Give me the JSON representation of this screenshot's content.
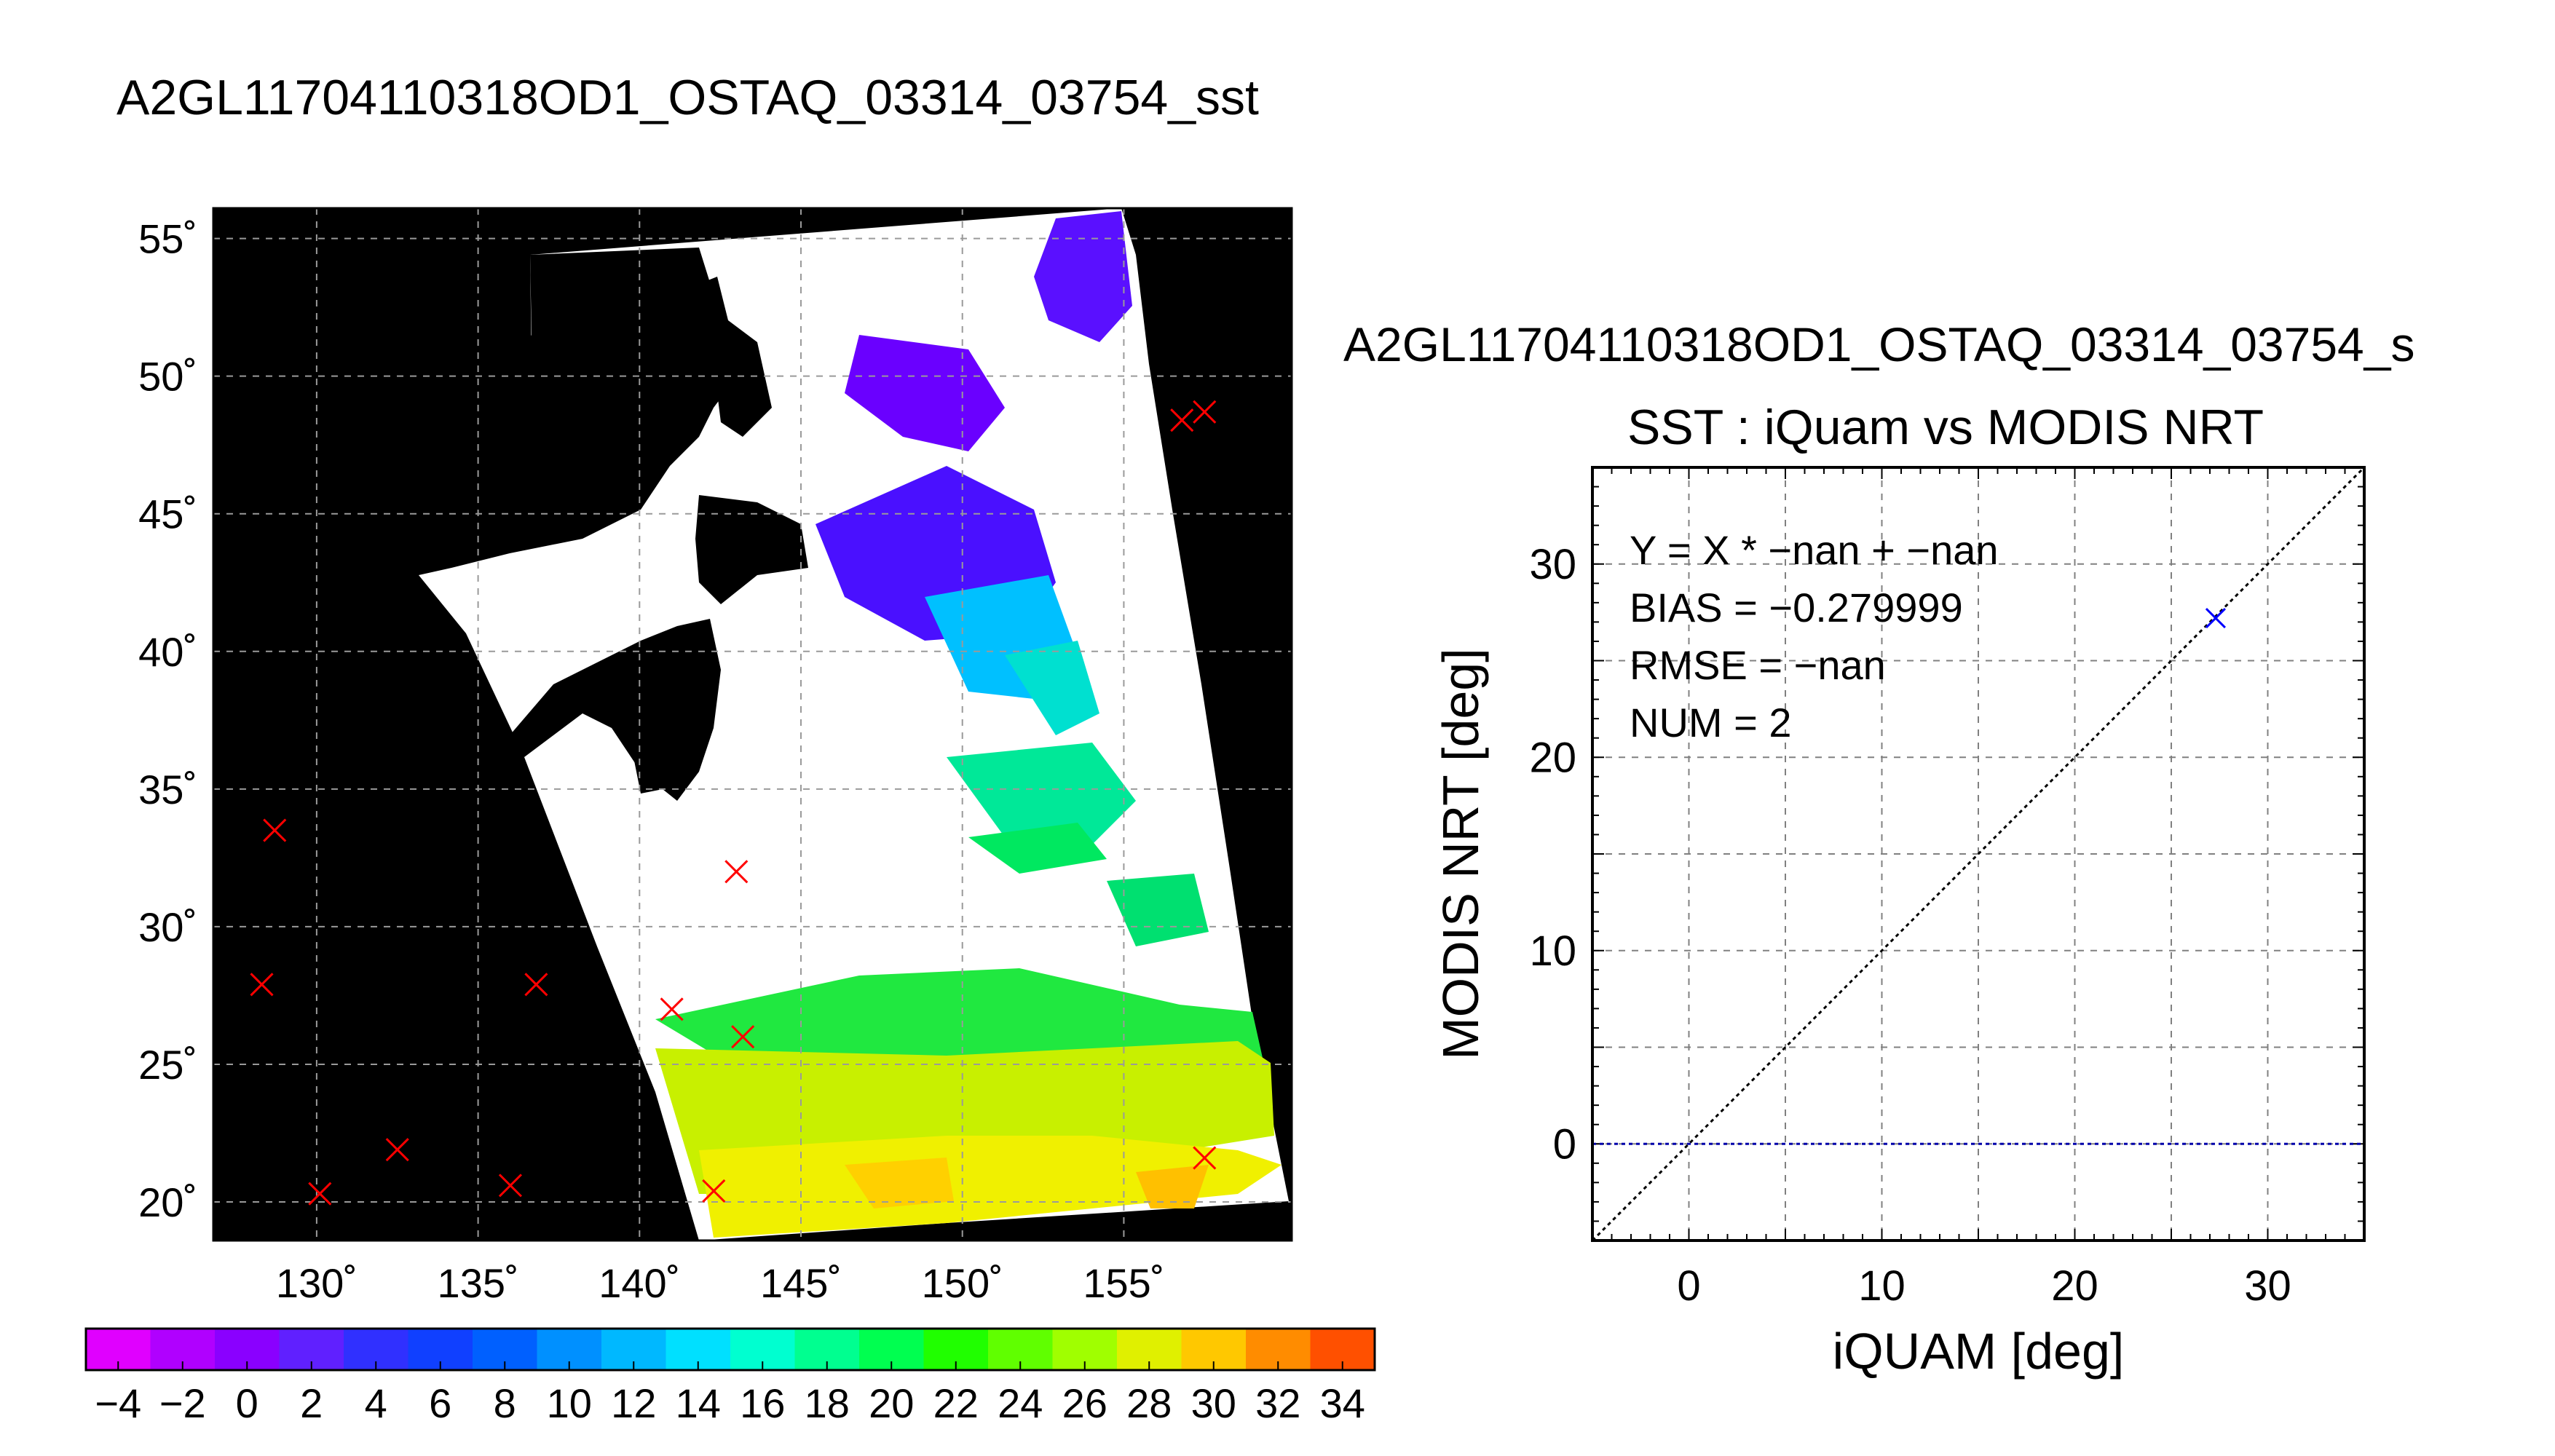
{
  "main_title": "A2GL11704110318OD1_OSTAQ_03314_03754_sst",
  "scatter_file_title": "A2GL11704110318OD1_OSTAQ_03314_03754_s",
  "scatter_subtitle": "SST : iQuam vs MODIS NRT",
  "stats": {
    "fit": "Y = X * −nan + −nan",
    "bias": "BIAS = −0.279999",
    "rmse": "RMSE = −nan",
    "num": "NUM = 2"
  },
  "colors": {
    "land": "#000000",
    "cloud": "#ffffff",
    "marker": "#ff0000",
    "scatter_point": "#0000ff",
    "zero_line": "#0000aa",
    "grid": "#808080"
  },
  "chart_data": [
    {
      "type": "heatmap",
      "title": "A2GL11704110318OD1_OSTAQ_03314_03754_sst",
      "xlabel": "",
      "ylabel": "",
      "x_ticks": [
        "130˚",
        "135˚",
        "140˚",
        "145˚",
        "150˚",
        "155˚"
      ],
      "x_tick_values": [
        130,
        135,
        140,
        145,
        150,
        155
      ],
      "y_ticks": [
        "20˚",
        "25˚",
        "30˚",
        "35˚",
        "40˚",
        "45˚",
        "50˚",
        "55˚"
      ],
      "y_tick_values": [
        20,
        25,
        30,
        35,
        40,
        45,
        50,
        55
      ],
      "xlim": [
        126.8,
        160.2
      ],
      "ylim": [
        18.6,
        56.1
      ],
      "grid": true,
      "colorbar": {
        "min": -5,
        "max": 35,
        "step": 2,
        "tick_labels": [
          "−4",
          "−2",
          "0",
          "2",
          "4",
          "6",
          "8",
          "10",
          "12",
          "14",
          "16",
          "18",
          "20",
          "22",
          "24",
          "26",
          "28",
          "30",
          "32",
          "34"
        ],
        "tick_values": [
          -4,
          -2,
          0,
          2,
          4,
          6,
          8,
          10,
          12,
          14,
          16,
          18,
          20,
          22,
          24,
          26,
          28,
          30,
          32,
          34
        ]
      },
      "matchup_markers": [
        {
          "lon": 128.7,
          "lat": 33.5
        },
        {
          "lon": 128.3,
          "lat": 27.9
        },
        {
          "lon": 130.1,
          "lat": 20.3
        },
        {
          "lon": 132.5,
          "lat": 21.9
        },
        {
          "lon": 136.0,
          "lat": 20.6
        },
        {
          "lon": 136.8,
          "lat": 27.9
        },
        {
          "lon": 141.0,
          "lat": 27.0
        },
        {
          "lon": 143.0,
          "lat": 32.0
        },
        {
          "lon": 143.2,
          "lat": 26.0
        },
        {
          "lon": 142.3,
          "lat": 20.4
        },
        {
          "lon": 156.8,
          "lat": 48.4
        },
        {
          "lon": 157.5,
          "lat": 48.7
        },
        {
          "lon": 157.5,
          "lat": 21.6
        }
      ]
    },
    {
      "type": "scatter",
      "title": "SST : iQuam vs MODIS NRT",
      "xlabel": "iQUAM [deg]",
      "ylabel": "MODIS NRT [deg]",
      "xlim": [
        -5,
        35
      ],
      "ylim": [
        -5,
        35
      ],
      "x_ticks": [
        "0",
        "10",
        "20",
        "30"
      ],
      "x_tick_values": [
        0,
        10,
        20,
        30
      ],
      "y_ticks": [
        "0",
        "10",
        "20",
        "30"
      ],
      "y_tick_values": [
        0,
        10,
        20,
        30
      ],
      "grid": true,
      "points": [
        {
          "x": 27.3,
          "y": 27.2
        }
      ],
      "reference_lines": [
        "y = x",
        "y = 0"
      ]
    }
  ]
}
